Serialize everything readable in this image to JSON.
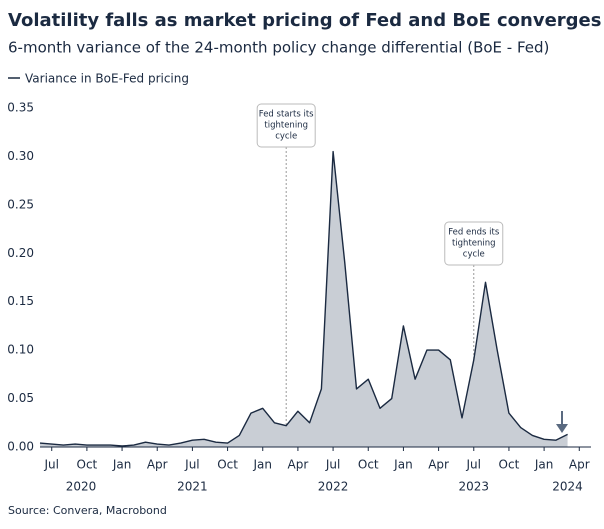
{
  "chart_data": {
    "type": "area",
    "title": "Volatility falls as market pricing of Fed and BoE converges",
    "subtitle": "6-month variance of the 24-month policy change differential (BoE - Fed)",
    "source": "Source: Convera, Macrobond",
    "x": [
      "2020-06",
      "2020-07",
      "2020-08",
      "2020-09",
      "2020-10",
      "2020-11",
      "2020-12",
      "2021-01",
      "2021-02",
      "2021-03",
      "2021-04",
      "2021-05",
      "2021-06",
      "2021-07",
      "2021-08",
      "2021-09",
      "2021-10",
      "2021-11",
      "2021-12",
      "2022-01",
      "2022-02",
      "2022-03",
      "2022-04",
      "2022-05",
      "2022-06",
      "2022-07",
      "2022-08",
      "2022-09",
      "2022-10",
      "2022-11",
      "2022-12",
      "2023-01",
      "2023-02",
      "2023-03",
      "2023-04",
      "2023-05",
      "2023-06",
      "2023-07",
      "2023-08",
      "2023-09",
      "2023-10",
      "2023-11",
      "2023-12",
      "2024-01",
      "2024-02",
      "2024-03"
    ],
    "series": [
      {
        "name": "Variance in BoE-Fed pricing",
        "color": "#1b2a41",
        "fill": "#c9ced5",
        "values": [
          0.004,
          0.003,
          0.002,
          0.003,
          0.002,
          0.002,
          0.002,
          0.001,
          0.002,
          0.005,
          0.003,
          0.002,
          0.004,
          0.007,
          0.008,
          0.005,
          0.004,
          0.012,
          0.035,
          0.04,
          0.025,
          0.022,
          0.037,
          0.025,
          0.06,
          0.305,
          0.19,
          0.06,
          0.07,
          0.04,
          0.05,
          0.125,
          0.07,
          0.1,
          0.1,
          0.09,
          0.03,
          0.09,
          0.17,
          0.1,
          0.035,
          0.02,
          0.012,
          0.008,
          0.007,
          0.013
        ]
      }
    ],
    "xlim": [
      "2020-06",
      "2024-05"
    ],
    "xticks": [
      {
        "value": "2020-07",
        "label": "Jul"
      },
      {
        "value": "2020-10",
        "label": "Oct"
      },
      {
        "value": "2021-01",
        "label": "Jan"
      },
      {
        "value": "2021-04",
        "label": "Apr"
      },
      {
        "value": "2021-07",
        "label": "Jul"
      },
      {
        "value": "2021-10",
        "label": "Oct"
      },
      {
        "value": "2022-01",
        "label": "Jan"
      },
      {
        "value": "2022-04",
        "label": "Apr"
      },
      {
        "value": "2022-07",
        "label": "Jul"
      },
      {
        "value": "2022-10",
        "label": "Oct"
      },
      {
        "value": "2023-01",
        "label": "Jan"
      },
      {
        "value": "2023-04",
        "label": "Apr"
      },
      {
        "value": "2023-07",
        "label": "Jul"
      },
      {
        "value": "2023-10",
        "label": "Oct"
      },
      {
        "value": "2024-01",
        "label": "Jan"
      },
      {
        "value": "2024-04",
        "label": "Apr"
      }
    ],
    "year_labels": [
      "2020",
      "2021",
      "2022",
      "2023",
      "2024"
    ],
    "ylim": [
      0,
      0.35
    ],
    "yticks": [
      {
        "value": 0,
        "label": "0.00"
      },
      0.05,
      {
        "value": 0.1,
        "label": "0.10"
      },
      0.15,
      {
        "value": 0.2,
        "label": "0.20"
      },
      0.25,
      {
        "value": 0.3,
        "label": "0.30"
      },
      0.35
    ],
    "grid": false,
    "annotations": [
      {
        "x": "2022-03",
        "lines": [
          "Fed starts its",
          "tightening",
          "cycle"
        ]
      },
      {
        "x": "2023-07",
        "lines": [
          "Fed ends its",
          "tightening",
          "cycle"
        ]
      }
    ]
  }
}
